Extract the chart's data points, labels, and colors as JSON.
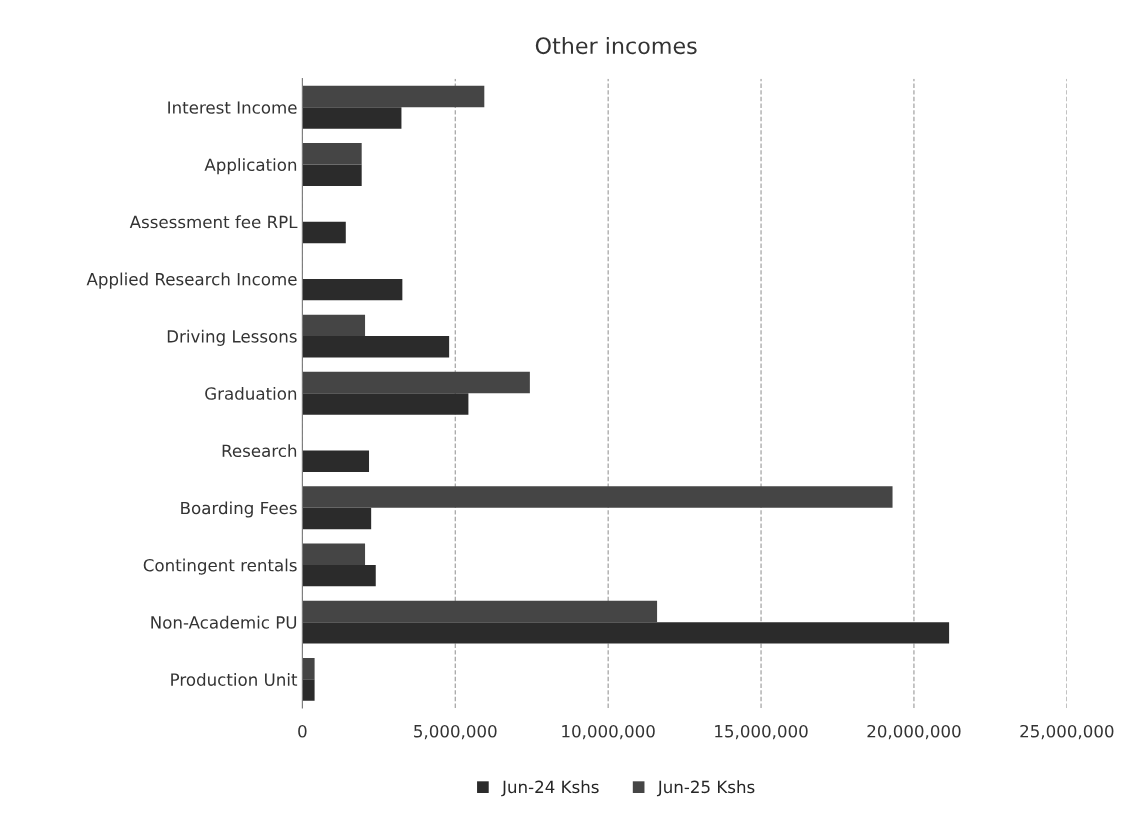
{
  "chart_data": {
    "type": "bar",
    "orientation": "horizontal",
    "title": "Other incomes",
    "categories": [
      "Interest Income",
      "Application",
      "Assessment fee RPL",
      "Applied Research Income",
      "Driving Lessons",
      "Graduation",
      "Research",
      "Boarding Fees",
      "Contingent rentals",
      "Non-Academic PU",
      "Production Unit"
    ],
    "series": [
      {
        "name": "Jun-24 Kshs",
        "color": "#2b2b2b",
        "values": [
          3240000,
          1940000,
          1420000,
          3270000,
          4800000,
          5430000,
          2180000,
          2250000,
          2400000,
          21150000,
          400000
        ]
      },
      {
        "name": "Jun-25 Kshs",
        "color": "#454545",
        "values": [
          5950000,
          1940000,
          null,
          null,
          2050000,
          7440000,
          null,
          19300000,
          2050000,
          11600000,
          400000
        ]
      }
    ],
    "xlim": [
      0,
      25000000
    ],
    "xticks": [
      {
        "value": 0,
        "label": "0"
      },
      {
        "value": 5000000,
        "label": "5,000,000"
      },
      {
        "value": 10000000,
        "label": "10,000,000"
      },
      {
        "value": 15000000,
        "label": "15,000,000"
      },
      {
        "value": 20000000,
        "label": "20,000,000"
      },
      {
        "value": 25000000,
        "label": "25,000,000"
      }
    ],
    "grid": "x",
    "legend": "bottom"
  }
}
